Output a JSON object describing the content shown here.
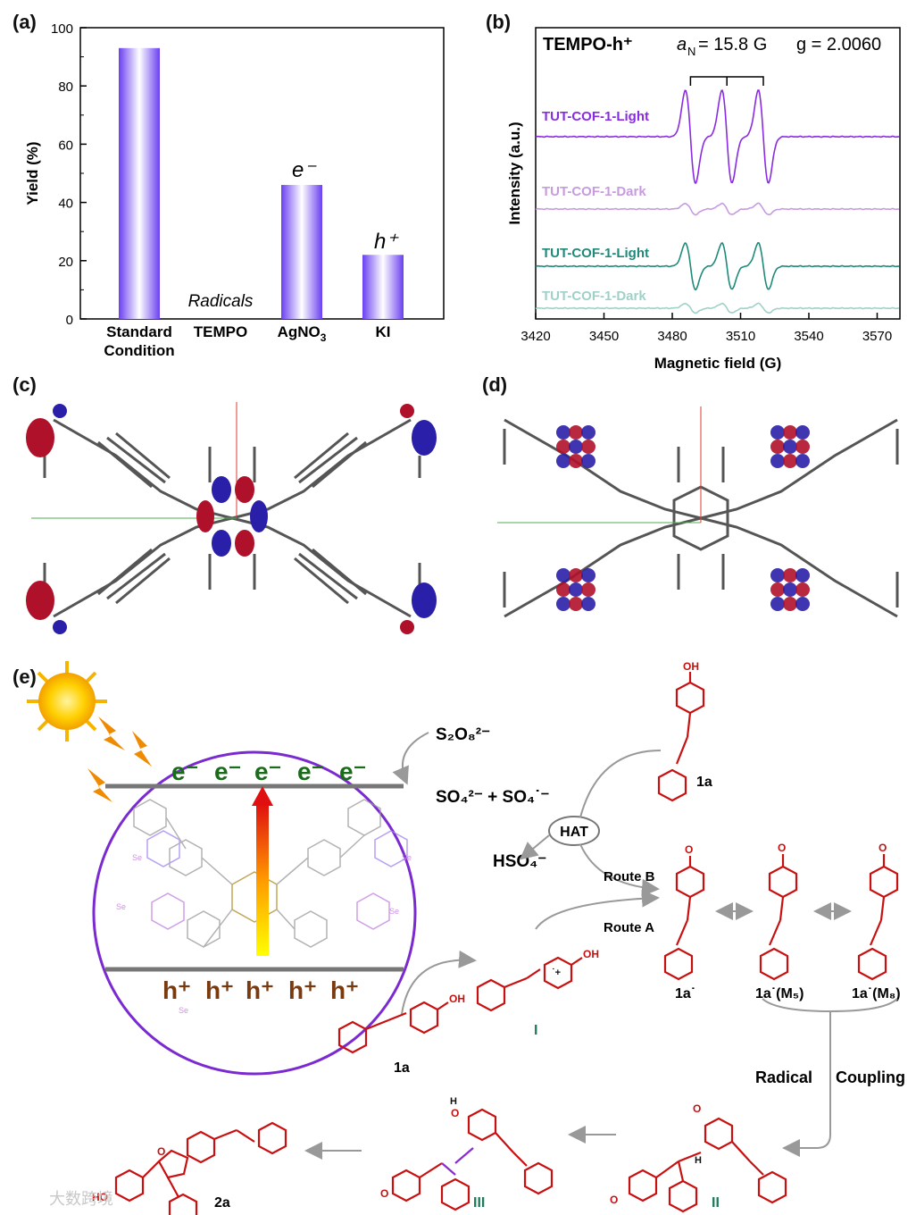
{
  "panel_labels": {
    "a": "(a)",
    "b": "(b)",
    "c": "(c)",
    "d": "(d)",
    "e": "(e)"
  },
  "chart_data": [
    {
      "type": "bar",
      "ylabel": "Yield (%)",
      "ylim": [
        0,
        100
      ],
      "yticks": [
        "0",
        "20",
        "40",
        "60",
        "80",
        "100"
      ],
      "categories": [
        "Standard\nCondition",
        "TEMPO",
        "AgNO3",
        "KI"
      ],
      "values": [
        93,
        0,
        46,
        22
      ],
      "annotations": {
        "radicals": "Radicals",
        "electron": "e⁻",
        "hole": "h⁺"
      },
      "bar_color": "#7b55f0"
    },
    {
      "type": "line",
      "title": "TEMPO-h⁺",
      "params": {
        "aN": "a",
        "aN_sub": "N",
        "aN_value": " = 15.8 G",
        "g": "g = 2.0060"
      },
      "xlabel": "Magnetic field (G)",
      "ylabel": "Intensity (a.u.)",
      "xlim": [
        3420,
        3580
      ],
      "xticks": [
        "3420",
        "3450",
        "3480",
        "3510",
        "3540",
        "3570"
      ],
      "series": [
        {
          "name": "TUT-COF-1-Light",
          "color": "#8a2be2",
          "amplitude": 1.0
        },
        {
          "name": "TUT-COF-1-Dark",
          "color": "#c79be0",
          "amplitude": 0.12
        },
        {
          "name": "TUT-COF-1-Light",
          "color": "#1f8a7a",
          "amplitude": 0.5
        },
        {
          "name": "TUT-COF-1-Dark",
          "color": "#9fd1c8",
          "amplitude": 0.1
        }
      ],
      "peak_centers": [
        3488,
        3504,
        3520
      ]
    }
  ],
  "scheme": {
    "electrons": [
      "e⁻",
      "e⁻",
      "e⁻",
      "e⁻",
      "e⁻"
    ],
    "holes": [
      "h⁺",
      "h⁺",
      "h⁺",
      "h⁺",
      "h⁺"
    ],
    "s2o8": "S₂O₈²⁻",
    "so4_line": "SO₄²⁻ +  SO₄˙⁻",
    "hat": "HAT",
    "hso4": "HSO₄⁻",
    "route_b": "Route B",
    "route_a": "Route A",
    "radical_coupling_1": "Radical",
    "radical_coupling_2": "Coupling",
    "labels": {
      "c1a_top": "1a",
      "c1a_bottom": "1a",
      "cI": "I",
      "c1a_rad": "1a˙",
      "c1a_m5": "1a˙(M₅)",
      "c1a_m8": "1a˙(M₈)",
      "cII": "II",
      "cIII": "III",
      "c2a": "2a"
    },
    "small": {
      "oh": "OH",
      "o": "O",
      "ho": "HO",
      "h": "H",
      "hplus": "H⁺",
      "se": "Se",
      "n": "N",
      "rad_cation": "˙+"
    }
  },
  "watermark": "大数跨境"
}
